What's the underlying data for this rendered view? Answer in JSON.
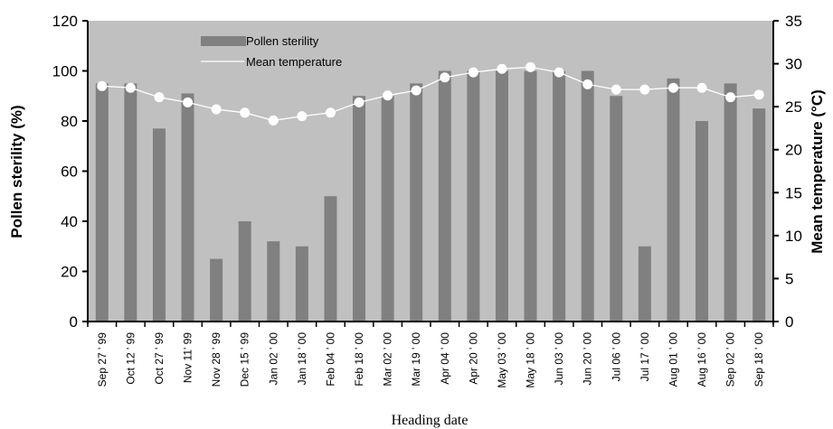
{
  "chart_data": {
    "type": "bar",
    "title": "",
    "xlabel": "Heading date",
    "ylabel": "Pollen sterility (%)",
    "y2label": "Mean temperature (°C)",
    "ylim": [
      0,
      120
    ],
    "y2lim": [
      0,
      35
    ],
    "yticks": [
      0,
      20,
      40,
      60,
      80,
      100,
      120
    ],
    "y2ticks": [
      0,
      5,
      10,
      15,
      20,
      25,
      30,
      35
    ],
    "grid": false,
    "legend_placement": "top-left",
    "categories": [
      "Sep 27 ' 99",
      "Oct 12 ' 99",
      "Oct 27 ' 99",
      "Nov 11' 99",
      "Nov 28 ' 99",
      "Dec 15 ' 99",
      "Jan 02 ' 00",
      "Jan 18 ' 00",
      "Feb 04 ' 00",
      "Feb 18 ' 00",
      "Mar 02 ' 00",
      "Mar 19 ' 00",
      "Apr 04 ' 00",
      "Apr 20 ' 00",
      "May 03 ' 00",
      "May 18 ' 00",
      "Jun 03 ' 00",
      "Jun 20 ' 00",
      "Jul 06 ' 00",
      "Jul 17 ' 00",
      "Aug 01 ' 00",
      "Aug 16 ' 00",
      "Sep 02 ' 00",
      "Sep 18 ' 00"
    ],
    "series": [
      {
        "name": "Pollen sterility",
        "kind": "bar",
        "axis": "left",
        "color": "#808080",
        "values": [
          95,
          95,
          77,
          91,
          25,
          40,
          32,
          30,
          50,
          90,
          90,
          95,
          100,
          100,
          100,
          100,
          100,
          100,
          90,
          30,
          97,
          80,
          95,
          85
        ]
      },
      {
        "name": "Mean temperature",
        "kind": "line",
        "axis": "right",
        "color": "#ffffff",
        "values": [
          27.4,
          27.2,
          26.1,
          25.5,
          24.7,
          24.3,
          23.4,
          23.9,
          24.3,
          25.5,
          26.3,
          26.9,
          28.4,
          29.0,
          29.4,
          29.6,
          29.0,
          27.6,
          27.0,
          27.0,
          27.2,
          27.2,
          26.1,
          26.4
        ]
      }
    ],
    "background_color": "#c0c0c0"
  }
}
